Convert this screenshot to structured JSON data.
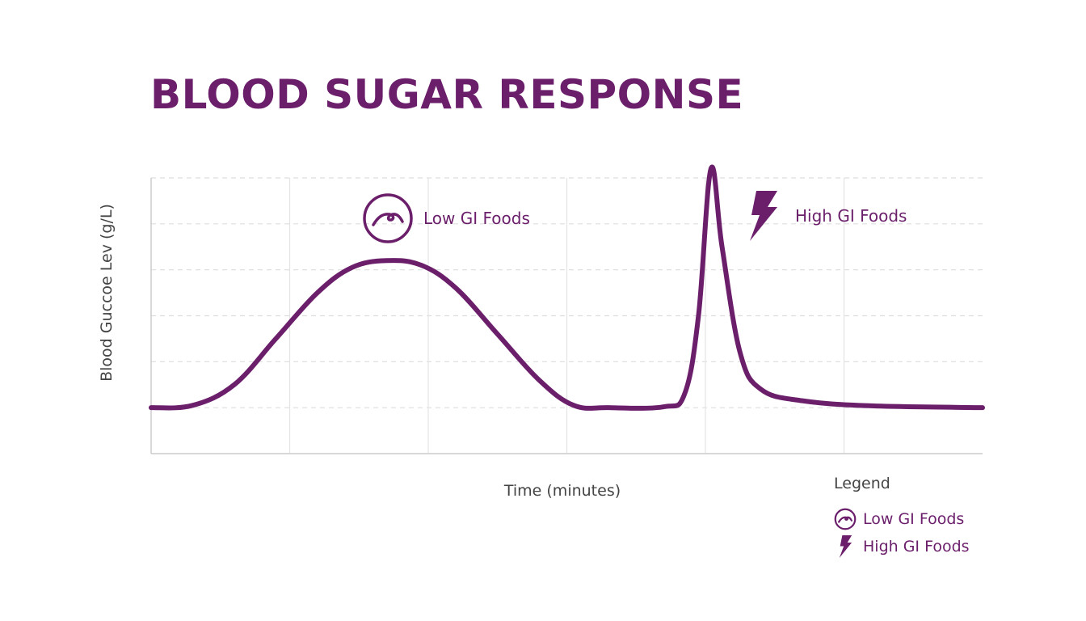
{
  "chart_data": {
    "type": "line",
    "title": "BLOOD SUGAR RESPONSE",
    "xlabel": "Time (minutes)",
    "ylabel": "Blood Guccoe Lev (g/L)",
    "xlim": [
      0,
      6
    ],
    "ylim": [
      0,
      6
    ],
    "grid": true,
    "tick_labels_shown": false,
    "line_color": "#6b1f6b",
    "series": [
      {
        "x": [
          0,
          0.3,
          0.6,
          0.9,
          1.2,
          1.45,
          1.7,
          1.95,
          2.2,
          2.5,
          2.8,
          3.05,
          3.3,
          3.7,
          3.85,
          3.95,
          4.04,
          4.12,
          4.25,
          4.4,
          4.7,
          5.2,
          6
        ],
        "y": [
          1,
          1.05,
          1.5,
          2.5,
          3.5,
          4.05,
          4.2,
          4.1,
          3.6,
          2.6,
          1.6,
          1.05,
          1.0,
          1.02,
          1.3,
          3.0,
          6.2,
          4.5,
          2.2,
          1.4,
          1.15,
          1.04,
          1.0
        ]
      }
    ],
    "annotations": [
      {
        "text": "Low GI Foods",
        "icon": "wave-icon",
        "near_x": 1.7
      },
      {
        "text": "High GI Foods",
        "icon": "lightning-icon",
        "near_x": 4.04
      }
    ],
    "legend": {
      "title": "Legend",
      "placement": "bottom-right",
      "items": [
        {
          "label": "Low GI Foods",
          "icon": "wave-icon"
        },
        {
          "label": "High GI Foods",
          "icon": "lightning-icon"
        }
      ]
    }
  }
}
